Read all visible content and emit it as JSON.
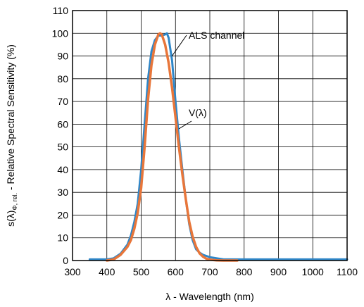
{
  "chart_data": {
    "type": "line",
    "xlabel": "λ - Wavelength (nm)",
    "ylabel_main": "s(λ)",
    "ylabel_sub": "Φ, rel.",
    "ylabel_rest": " - Relative Spectral Sensitivity (%)",
    "xlim": [
      300,
      1100
    ],
    "ylim": [
      0,
      110
    ],
    "xticks": [
      300,
      400,
      500,
      600,
      700,
      800,
      900,
      1000,
      1100
    ],
    "yticks": [
      0,
      10,
      20,
      30,
      40,
      50,
      60,
      70,
      80,
      90,
      100,
      110
    ],
    "grid": true,
    "colors": {
      "als": "#2e86c8",
      "vlambda": "#e8763a"
    },
    "annotations": {
      "als": "ALS channel",
      "vlambda": "V(λ)"
    },
    "series": [
      {
        "name": "ALS channel",
        "x": [
          350,
          400,
          420,
          440,
          460,
          470,
          480,
          490,
          500,
          510,
          520,
          530,
          540,
          550,
          560,
          570,
          575,
          580,
          590,
          600,
          610,
          620,
          630,
          640,
          650,
          660,
          670,
          680,
          690,
          700,
          720,
          740,
          760,
          780,
          800,
          850,
          900,
          950,
          1000,
          1050,
          1100
        ],
        "y": [
          0.5,
          0.5,
          1,
          3,
          7,
          11,
          17,
          25,
          40,
          60,
          80,
          92,
          97,
          99,
          99,
          99.5,
          100,
          98,
          88,
          70,
          54,
          40,
          27,
          16,
          9,
          5,
          3.5,
          2.5,
          2,
          1.5,
          1,
          0.5,
          0.5,
          0.5,
          0.5,
          0.5,
          0.5,
          0.5,
          0.5,
          0.5,
          0.5
        ]
      },
      {
        "name": "V(λ)",
        "x": [
          400,
          420,
          440,
          460,
          470,
          480,
          490,
          500,
          510,
          520,
          530,
          540,
          550,
          555,
          560,
          570,
          580,
          590,
          600,
          610,
          620,
          630,
          640,
          650,
          660,
          670,
          680,
          690,
          700,
          720,
          740,
          760,
          780
        ],
        "y": [
          0,
          0.5,
          2.5,
          6,
          9,
          14,
          21,
          32,
          50,
          71,
          86,
          95,
          99.5,
          100,
          99.5,
          95,
          87,
          76,
          63,
          50,
          38,
          27,
          17,
          10.5,
          6,
          3.2,
          1.7,
          0.8,
          0.4,
          0.1,
          0,
          0,
          0
        ]
      }
    ]
  }
}
